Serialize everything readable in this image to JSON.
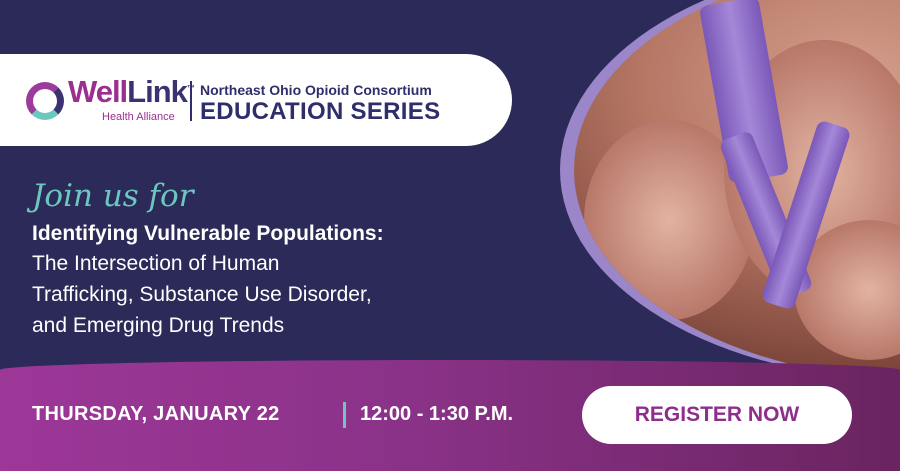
{
  "logo": {
    "brand_prefix": "Well",
    "brand_suffix": "Link",
    "tagline": "Health Alliance",
    "trademark": "™"
  },
  "series": {
    "organization": "Northeast Ohio Opioid Consortium",
    "name": "EDUCATION SERIES"
  },
  "event": {
    "intro": "Join us for",
    "title": "Identifying Vulnerable Populations:",
    "subtitle_lines": [
      "The Intersection of Human",
      "Trafficking, Substance Use Disorder,",
      "and Emerging Drug Trends"
    ],
    "date": "THURSDAY, JANUARY 22",
    "time": "12:00 - 1:30 P.M."
  },
  "cta": {
    "register_label": "REGISTER NOW"
  },
  "colors": {
    "navy": "#2b2a58",
    "purple": "#9b2f8f",
    "teal": "#6cc7c0",
    "lavender": "#9a86c8"
  }
}
